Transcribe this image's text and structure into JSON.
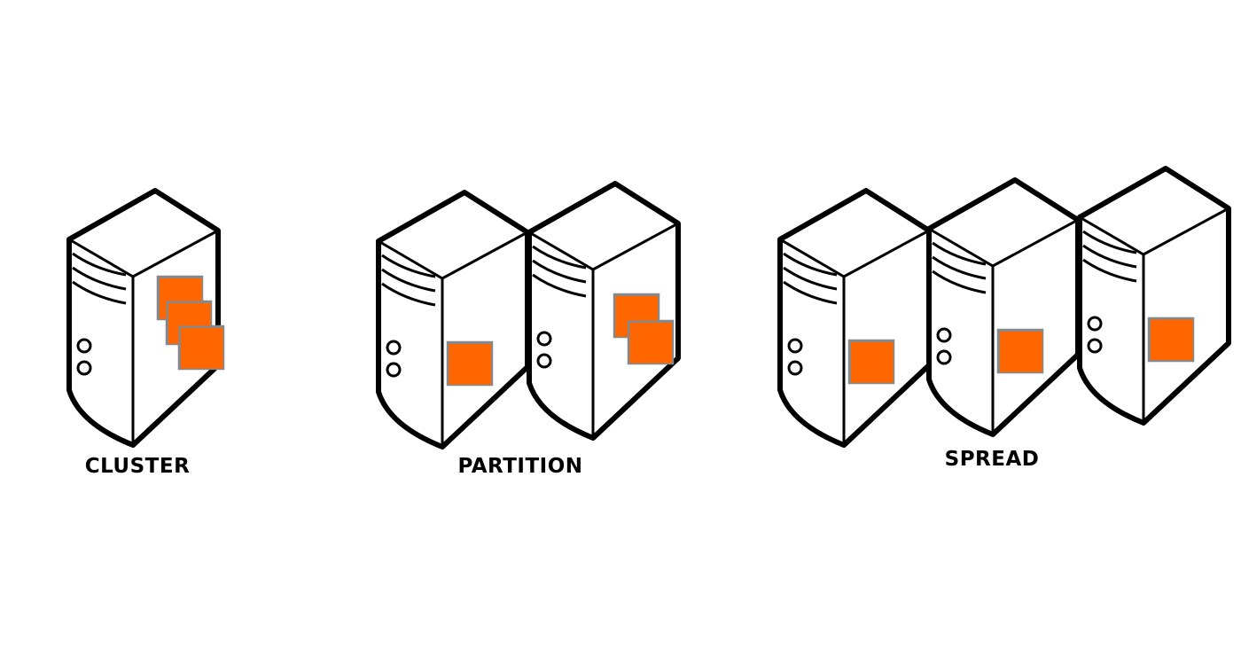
{
  "groups": [
    {
      "label": "CLUSTER",
      "servers": [
        {
          "instances": 3
        }
      ]
    },
    {
      "label": "PARTITION",
      "servers": [
        {
          "instances": 1
        },
        {
          "instances": 2
        }
      ]
    },
    {
      "label": "SPREAD",
      "servers": [
        {
          "instances": 1
        },
        {
          "instances": 1
        },
        {
          "instances": 1
        }
      ]
    }
  ],
  "colors": {
    "instance": "#ff6600",
    "instance_border": "#888888",
    "outline": "#000000",
    "background": "#ffffff"
  }
}
